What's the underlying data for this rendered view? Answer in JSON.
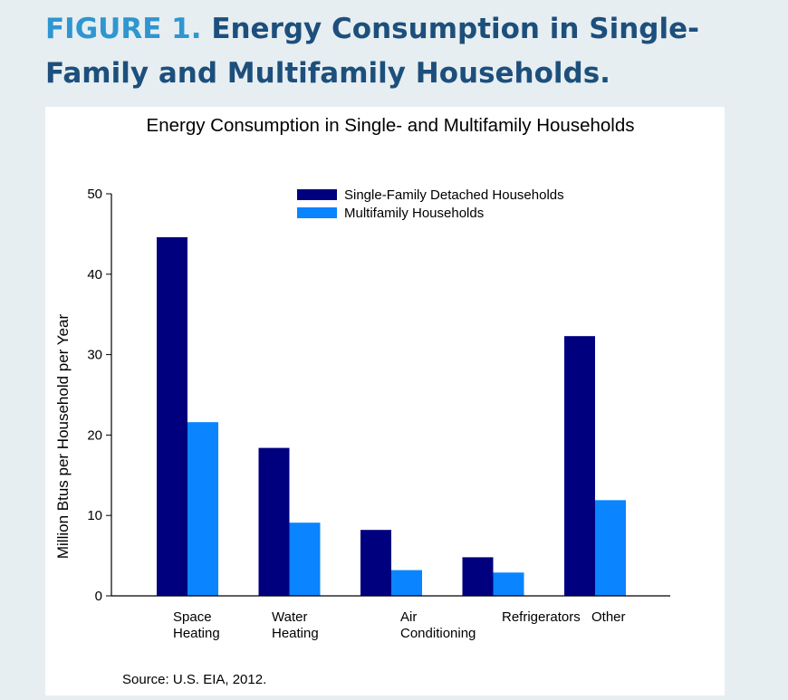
{
  "figure": {
    "number_label": "FIGURE 1.",
    "title": "Energy Consumption in Single-Family and Multifamily Households."
  },
  "chart_data": {
    "type": "bar",
    "title": "Energy Consumption in Single- and Multifamily Households",
    "ylabel": "Million Btus per Household per Year",
    "xlabel": "",
    "ylim": [
      0,
      50
    ],
    "yticks": [
      0,
      10,
      20,
      30,
      40,
      50
    ],
    "grid": false,
    "legend_position": "top-right",
    "categories": [
      [
        "Space",
        "Heating"
      ],
      [
        "Water",
        "Heating"
      ],
      [
        "Air",
        "Conditioning"
      ],
      [
        "Refrigerators"
      ],
      [
        "Other"
      ]
    ],
    "series": [
      {
        "name": "Single-Family Detached Households",
        "color": "#00007f",
        "values": [
          44.6,
          18.4,
          8.2,
          4.8,
          32.3
        ]
      },
      {
        "name": "Multifamily Households",
        "color": "#0a84ff",
        "values": [
          21.6,
          9.1,
          3.2,
          2.9,
          11.9
        ]
      }
    ],
    "source": "Source: U.S. EIA, 2012."
  }
}
